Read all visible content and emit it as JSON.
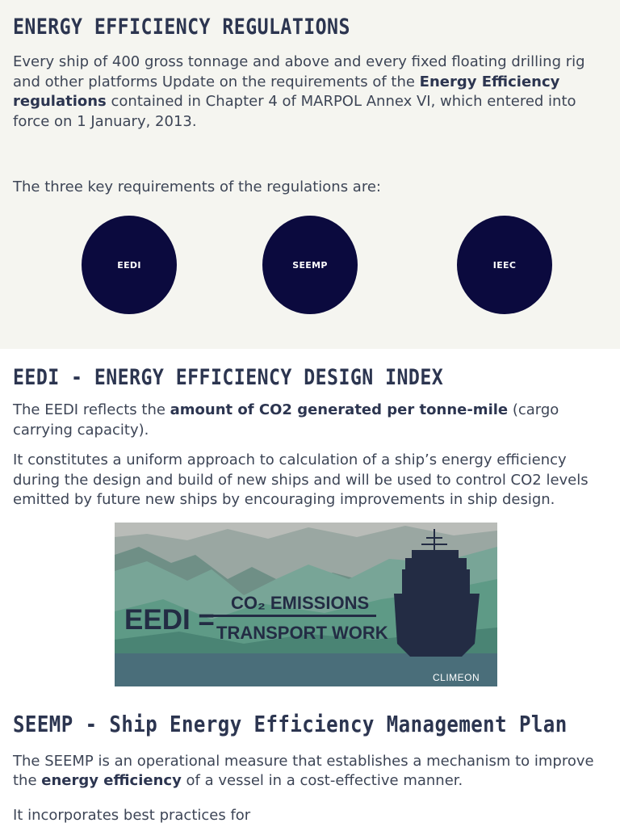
{
  "top": {
    "title": "ENERGY EFFICIENCY REGULATIONS",
    "intro_pre": "Every ship of 400 gross tonnage and above and every fixed floating drilling rig and other platforms Update on the requirements of the ",
    "intro_bold": "Energy Efficiency regulations",
    "intro_post": " contained in Chapter 4 of MARPOL Annex VI, which entered into force on 1 January, 2013.",
    "key_text": "The three key requirements of the regulations are:",
    "requirements": [
      "EEDI",
      "SEEMP",
      "IEEC"
    ]
  },
  "eedi": {
    "title": "EEDI - ENERGY EFFICIENCY DESIGN INDEX",
    "p1_pre": "The EEDI reflects the ",
    "p1_bold": "amount of CO2 generated per tonne-mile",
    "p1_post": " (cargo carrying capacity).",
    "p2": " It constitutes a uniform approach to calculation of a ship’s energy efficiency during the design and build of new ships and will be used to control CO2 levels emitted by future new ships by encouraging improvements in ship design.",
    "banner": {
      "lhs": "EEDI =",
      "numerator": "CO₂ EMISSIONS",
      "denominator": "TRANSPORT WORK",
      "brand": "CLIMEON"
    }
  },
  "seemp": {
    "title": "SEEMP - Ship Energy Efficiency Management Plan",
    "p1_pre": "The SEEMP is an operational measure that establishes a mechanism to improve the ",
    "p1_bold": "energy efficiency",
    "p1_post": " of a vessel in a cost-effective manner.",
    "p2": "It incorporates best practices for"
  },
  "colors": {
    "circle": "#0b0a3e",
    "heading": "#2c3550",
    "top_bg": "#f5f5f0"
  }
}
